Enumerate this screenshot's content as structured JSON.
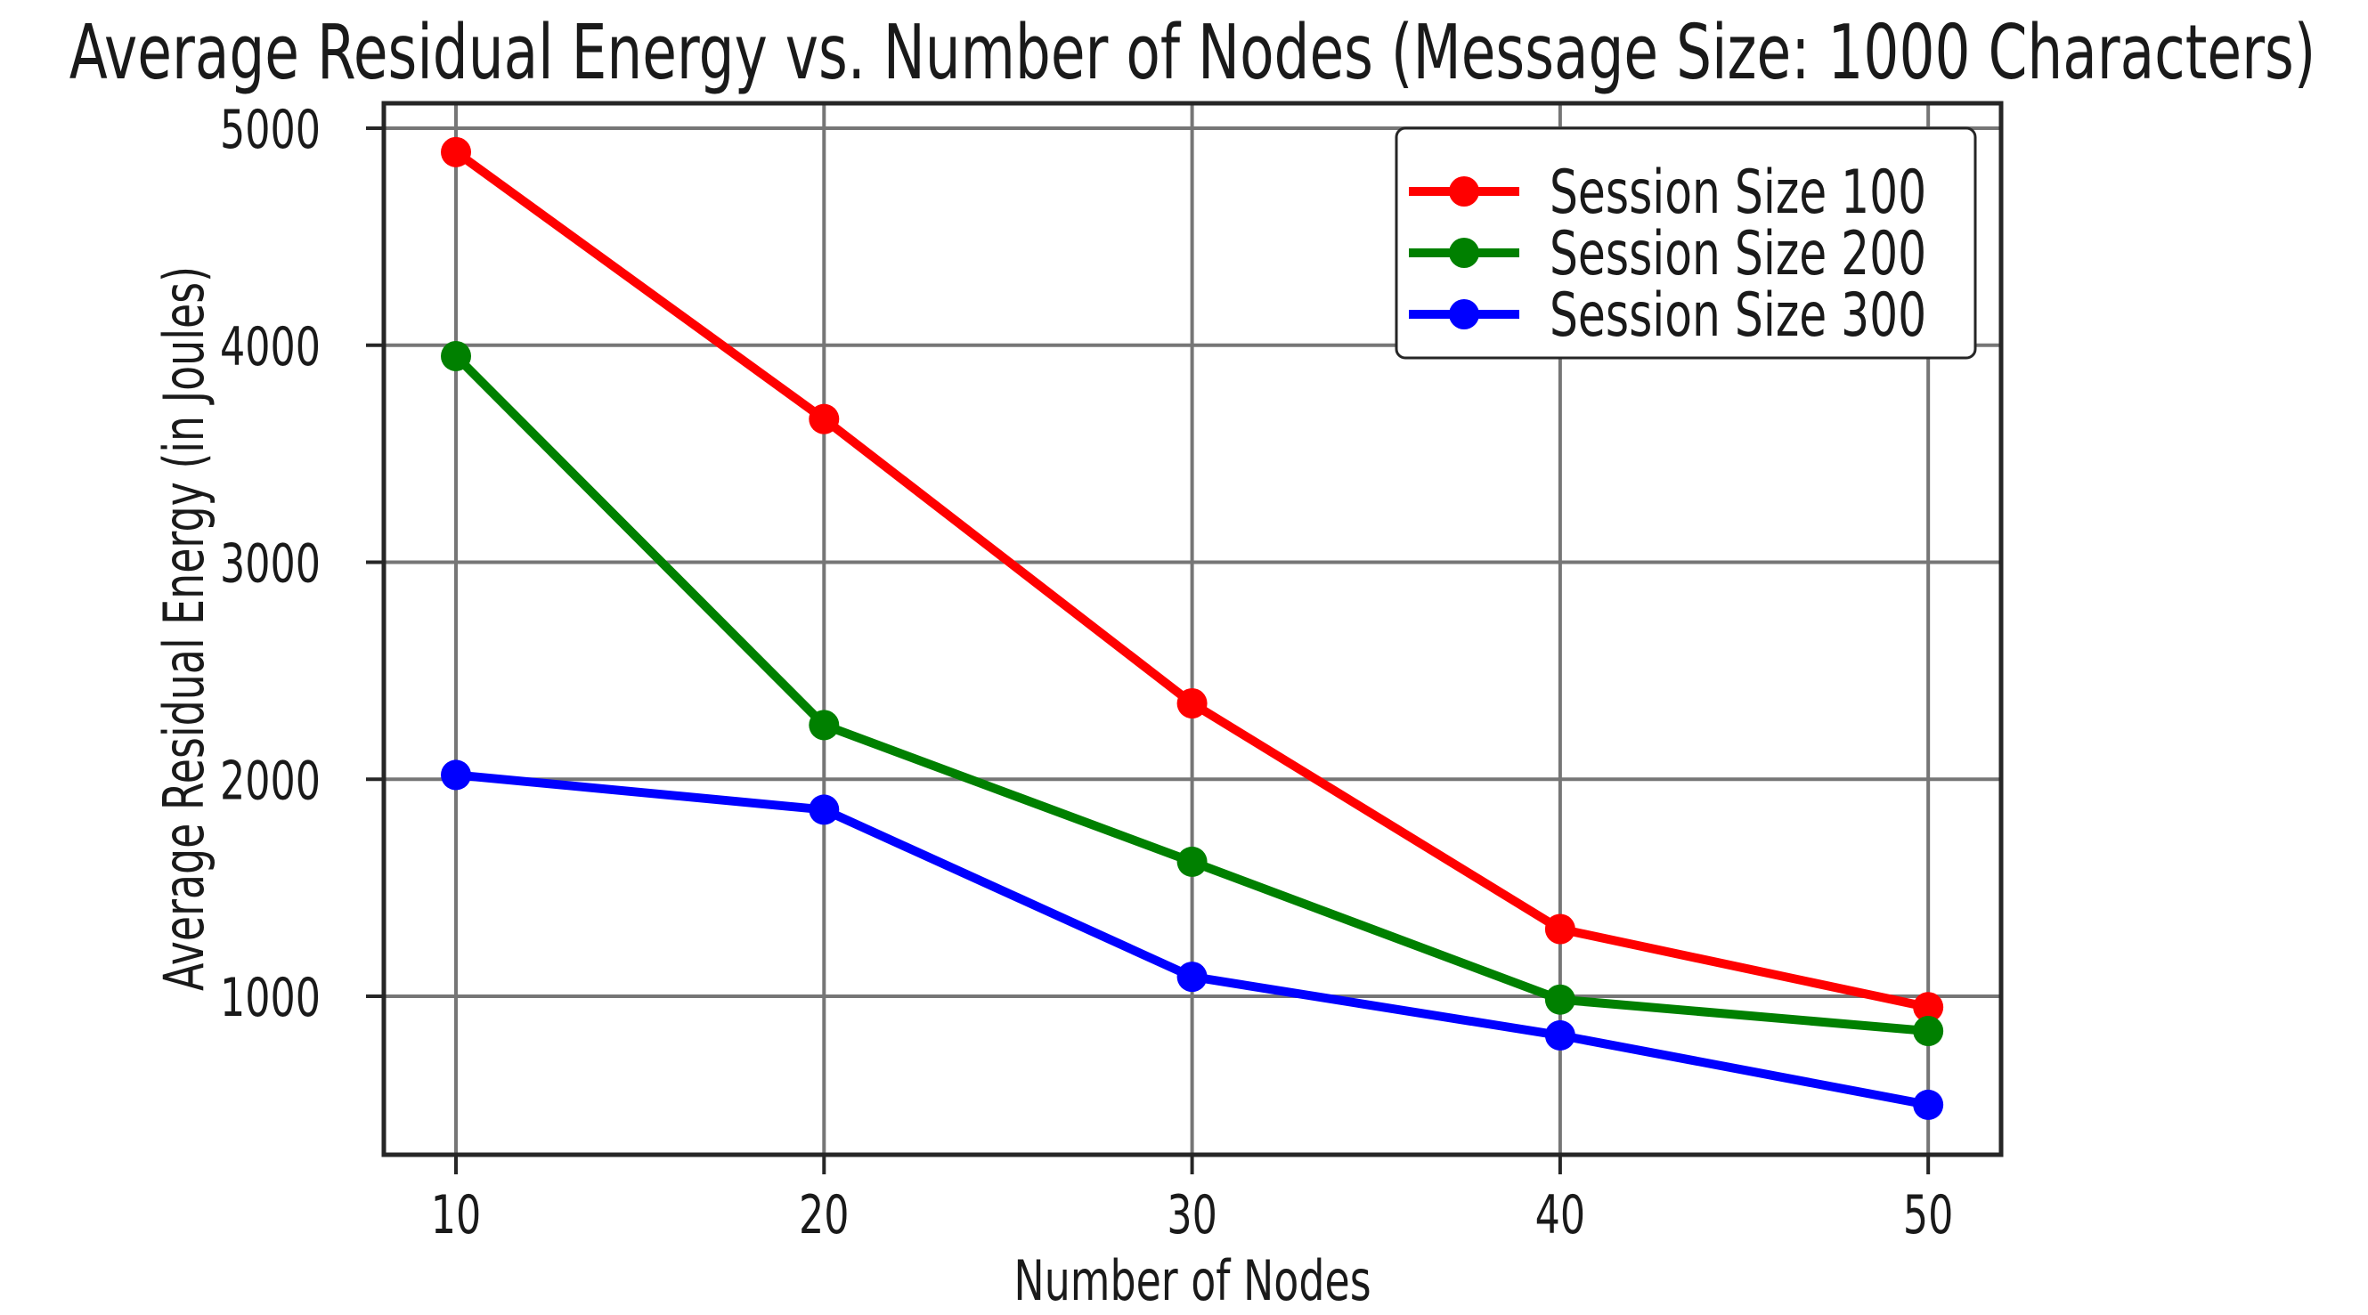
{
  "figure": {
    "background": "#ffffff"
  },
  "chart_data": {
    "type": "line",
    "title": "Average Residual Energy vs. Number of Nodes (Message Size: 1000 Characters)",
    "xlabel": "Number of Nodes",
    "ylabel": "Average Residual Energy (in Joules)",
    "x": [
      10,
      20,
      30,
      40,
      50
    ],
    "x_ticks": [
      "10",
      "20",
      "30",
      "40",
      "50"
    ],
    "y_tick_values": [
      1000,
      2000,
      3000,
      4000,
      5000
    ],
    "y_ticks": [
      "1000",
      "2000",
      "3000",
      "4000",
      "5000"
    ],
    "series": [
      {
        "name": "Session Size 100",
        "color": "#ff0000",
        "values": [
          4890,
          3660,
          2350,
          1310,
          950
        ]
      },
      {
        "name": "Session Size 200",
        "color": "#008000",
        "values": [
          3950,
          2250,
          1620,
          985,
          840
        ]
      },
      {
        "name": "Session Size 300",
        "color": "#0000ff",
        "values": [
          2020,
          1860,
          1090,
          820,
          500
        ]
      }
    ],
    "x_range": [
      8.04,
      51.98
    ],
    "y_range": [
      270,
      5115
    ],
    "grid": true,
    "marker": "circle",
    "legend_position": "upper right"
  }
}
